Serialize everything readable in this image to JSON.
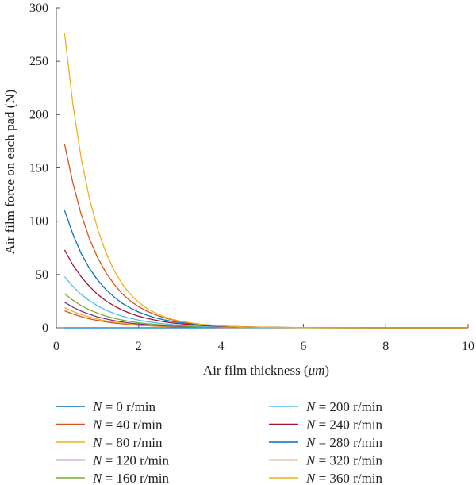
{
  "chart_data": {
    "type": "line",
    "title": "",
    "xlabel_prefix": "Air film thickness (",
    "xlabel_unit": "μm",
    "xlabel_suffix": ")",
    "ylabel": "Air film force on each pad (N)",
    "xlim": [
      0,
      10
    ],
    "ylim": [
      0,
      300
    ],
    "xticks": [
      0,
      2,
      4,
      6,
      8,
      10
    ],
    "yticks": [
      0,
      50,
      100,
      150,
      200,
      250,
      300
    ],
    "grid": false,
    "legend_position": "bottom",
    "legend_variable": "N",
    "x": [
      0.2,
      0.4,
      0.6,
      0.8,
      1.0,
      1.2,
      1.4,
      1.6,
      1.8,
      2.0,
      2.2,
      2.4,
      2.6,
      2.8,
      3.0,
      3.5,
      4.0,
      4.5,
      5.0,
      6.0,
      7.0,
      8.0,
      9.0,
      10.0
    ],
    "series": [
      {
        "name": "= 0 r/min",
        "color": "#0072BD",
        "values": [
          0,
          0,
          0,
          0,
          0,
          0,
          0,
          0,
          0,
          0,
          0,
          0,
          0,
          0,
          0,
          0,
          0,
          0,
          0,
          0,
          0,
          0,
          0,
          0
        ]
      },
      {
        "name": "= 40 r/min",
        "color": "#D95319",
        "values": [
          16,
          13,
          10.5,
          8.5,
          6.9,
          5.6,
          4.5,
          3.7,
          3.0,
          2.4,
          1.95,
          1.59,
          1.29,
          1.04,
          0.85,
          0.51,
          0.3,
          0.18,
          0.11,
          0.04,
          0.01,
          0,
          0,
          0
        ]
      },
      {
        "name": "= 80 r/min",
        "color": "#EDB120",
        "values": [
          19,
          15.4,
          12.5,
          10.1,
          8.2,
          6.6,
          5.4,
          4.4,
          3.5,
          2.9,
          2.3,
          1.9,
          1.5,
          1.2,
          1.0,
          0.6,
          0.36,
          0.21,
          0.13,
          0.05,
          0.02,
          0,
          0,
          0
        ]
      },
      {
        "name": "= 120 r/min",
        "color": "#7E2F8E",
        "values": [
          24,
          19.4,
          15.7,
          12.7,
          10.3,
          8.4,
          6.8,
          5.5,
          4.4,
          3.6,
          2.9,
          2.4,
          1.9,
          1.6,
          1.3,
          0.76,
          0.45,
          0.27,
          0.16,
          0.06,
          0.02,
          0,
          0,
          0
        ]
      },
      {
        "name": "= 160 r/min",
        "color": "#77AC30",
        "values": [
          32,
          25.9,
          21,
          17,
          13.8,
          11.1,
          9.0,
          7.3,
          5.9,
          4.8,
          3.9,
          3.2,
          2.6,
          2.1,
          1.7,
          1.0,
          0.6,
          0.36,
          0.21,
          0.08,
          0.03,
          0,
          0,
          0
        ]
      },
      {
        "name": "= 200 r/min",
        "color": "#4DBEEE",
        "values": [
          48,
          38.9,
          31.5,
          25.5,
          20.7,
          16.7,
          13.5,
          11.0,
          8.9,
          7.2,
          5.8,
          4.7,
          3.8,
          3.1,
          2.5,
          1.5,
          0.9,
          0.53,
          0.32,
          0.11,
          0.04,
          0.01,
          0,
          0
        ]
      },
      {
        "name": "= 240 r/min",
        "color": "#A2142F",
        "values": [
          73,
          59,
          48,
          39,
          31.4,
          25.4,
          20.6,
          16.7,
          13.5,
          10.9,
          8.9,
          7.2,
          5.8,
          4.7,
          3.8,
          2.3,
          1.36,
          0.81,
          0.48,
          0.17,
          0.06,
          0.02,
          0,
          0
        ]
      },
      {
        "name": "= 280 r/min",
        "color": "#0072BD",
        "values": [
          110,
          88,
          70,
          56,
          45,
          36,
          29,
          23,
          18.5,
          14.8,
          11.8,
          9.5,
          7.6,
          6.1,
          4.9,
          2.8,
          1.6,
          0.95,
          0.55,
          0.18,
          0.06,
          0.02,
          0,
          0
        ]
      },
      {
        "name": "= 320 r/min",
        "color": "#D95319",
        "values": [
          172,
          136,
          107,
          84,
          66,
          52,
          41,
          32,
          25.2,
          19.8,
          15.6,
          12.3,
          9.7,
          7.6,
          6.0,
          3.3,
          1.8,
          1.0,
          0.56,
          0.17,
          0.05,
          0.02,
          0,
          0
        ]
      },
      {
        "name": "= 360 r/min",
        "color": "#EDB120",
        "values": [
          276,
          210,
          160,
          122,
          93,
          71,
          54,
          41,
          31.4,
          24.0,
          18.3,
          14.0,
          10.7,
          8.2,
          6.3,
          3.3,
          1.75,
          0.92,
          0.49,
          0.14,
          0.04,
          0.01,
          0,
          0
        ]
      }
    ]
  }
}
